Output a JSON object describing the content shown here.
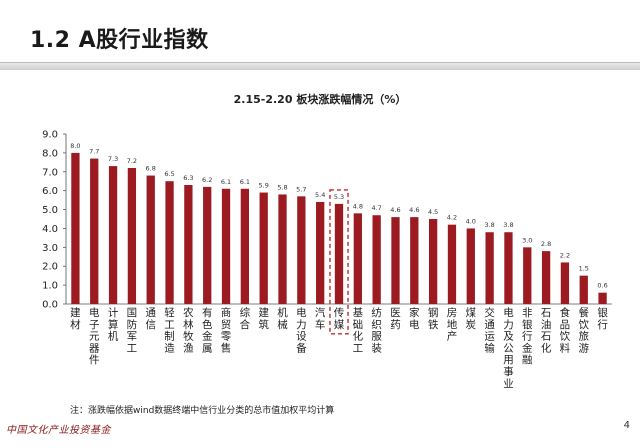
{
  "header": {
    "title": "1.2 A股行业指数"
  },
  "footnote": "注：涨跌幅依据wind数据终端中信行业分类的总市值加权平均计算",
  "footer": {
    "logo_text": "中国文化产业投资基金",
    "page_number": "4"
  },
  "colors": {
    "bar": "#9b1b20",
    "highlight_box": "#c0282d"
  },
  "chart_data": {
    "type": "bar",
    "title": "2.15-2.20 板块涨跌幅情况（%）",
    "xlabel": "",
    "ylabel": "",
    "ylim": [
      0,
      9
    ],
    "yticks": [
      "0.0",
      "1.0",
      "2.0",
      "3.0",
      "4.0",
      "5.0",
      "6.0",
      "7.0",
      "8.0",
      "9.0"
    ],
    "grid": false,
    "categories": [
      "建材",
      "电子元器件",
      "计算机",
      "国防军工",
      "通信",
      "轻工制造",
      "农林牧渔",
      "有色金属",
      "商贸零售",
      "综合",
      "建筑",
      "机械",
      "电力设备",
      "汽车",
      "传媒",
      "基础化工",
      "纺织服装",
      "医药",
      "家电",
      "钢铁",
      "房地产",
      "煤炭",
      "交通运输",
      "电力及公用事业",
      "非银行金融",
      "石油石化",
      "食品饮料",
      "餐饮旅游",
      "银行"
    ],
    "values": [
      8.0,
      7.7,
      7.3,
      7.2,
      6.8,
      6.5,
      6.3,
      6.2,
      6.1,
      6.1,
      5.9,
      5.8,
      5.7,
      5.4,
      5.3,
      4.8,
      4.7,
      4.6,
      4.6,
      4.5,
      4.2,
      4.0,
      3.8,
      3.8,
      3.0,
      2.8,
      2.2,
      1.5,
      0.6
    ],
    "value_labels": [
      "8.0",
      "7.7",
      "7.3",
      "7.2",
      "6.8",
      "6.5",
      "6.3",
      "6.2",
      "6.1",
      "6.1",
      "5.9",
      "5.8",
      "5.7",
      "5.4",
      "5.3",
      "4.8",
      "4.7",
      "4.6",
      "4.6",
      "4.5",
      "4.2",
      "4.0",
      "3.8",
      "3.8",
      "3.0",
      "2.8",
      "2.2",
      "1.5",
      "0.6"
    ],
    "highlighted_category": "传媒"
  }
}
